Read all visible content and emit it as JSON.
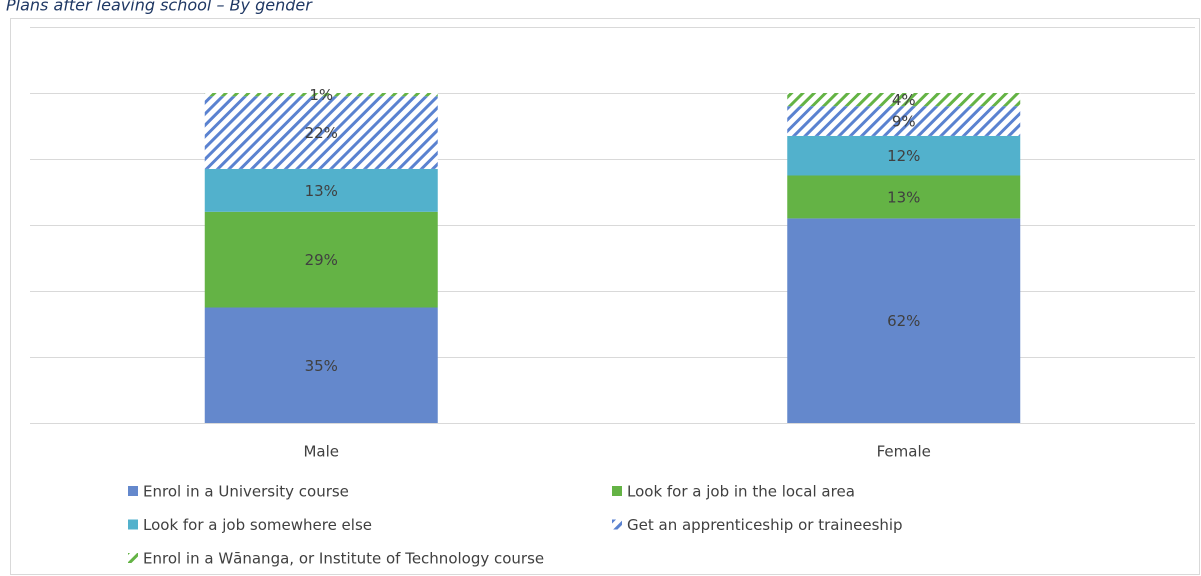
{
  "chart_data": {
    "type": "stacked_bar",
    "title": "Plans after leaving school – By gender",
    "categories": [
      "Male",
      "Female"
    ],
    "series": [
      {
        "name": "Enrol in a University course",
        "color": "#6488cc",
        "hatched": false,
        "values": [
          35,
          62
        ],
        "value_labels": [
          "35%",
          "62%"
        ]
      },
      {
        "name": "Look for a job in the local area",
        "color": "#64b345",
        "hatched": false,
        "values": [
          29,
          13
        ],
        "value_labels": [
          "29%",
          "13%"
        ]
      },
      {
        "name": "Look for a job somewhere else",
        "color": "#52b1cc",
        "hatched": false,
        "values": [
          13,
          12
        ],
        "value_labels": [
          "13%",
          "12%"
        ]
      },
      {
        "name": "Get an apprenticeship or traineeship",
        "color": "#5a82d0",
        "hatched": true,
        "values": [
          22,
          9
        ],
        "value_labels": [
          "22%",
          "9%"
        ]
      },
      {
        "name": "Enrol in a Wānanga, or Institute of Technology course",
        "color": "#64b345",
        "hatched": true,
        "values": [
          1,
          4
        ],
        "value_labels": [
          "1%",
          "4%"
        ]
      }
    ],
    "ylim": [
      0,
      120
    ],
    "yticks": [
      0,
      20,
      40,
      60,
      80,
      100,
      120
    ],
    "grid": true
  }
}
